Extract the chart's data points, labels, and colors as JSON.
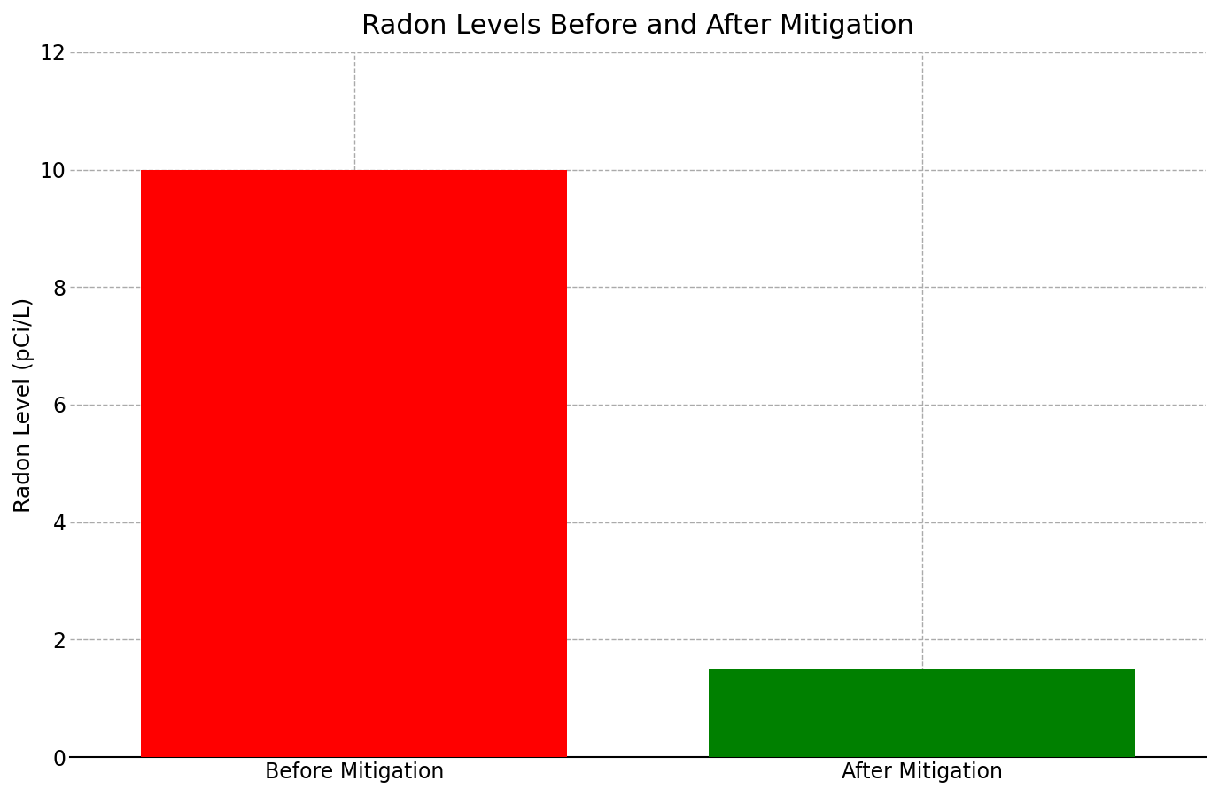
{
  "categories": [
    "Before Mitigation",
    "After Mitigation"
  ],
  "values": [
    10.0,
    1.5
  ],
  "bar_colors": [
    "#ff0000",
    "#008000"
  ],
  "title": "Radon Levels Before and After Mitigation",
  "ylabel": "Radon Level (pCi/L)",
  "ylim": [
    0,
    12
  ],
  "yticks": [
    0,
    2,
    4,
    6,
    8,
    10,
    12
  ],
  "title_fontsize": 22,
  "label_fontsize": 18,
  "tick_fontsize": 17,
  "bar_width": 0.75,
  "x_positions": [
    0.5,
    1.5
  ],
  "xlim": [
    0.0,
    2.0
  ],
  "background_color": "#ffffff",
  "grid_color": "#aaaaaa",
  "grid_linestyle": "--",
  "grid_linewidth": 1.0
}
